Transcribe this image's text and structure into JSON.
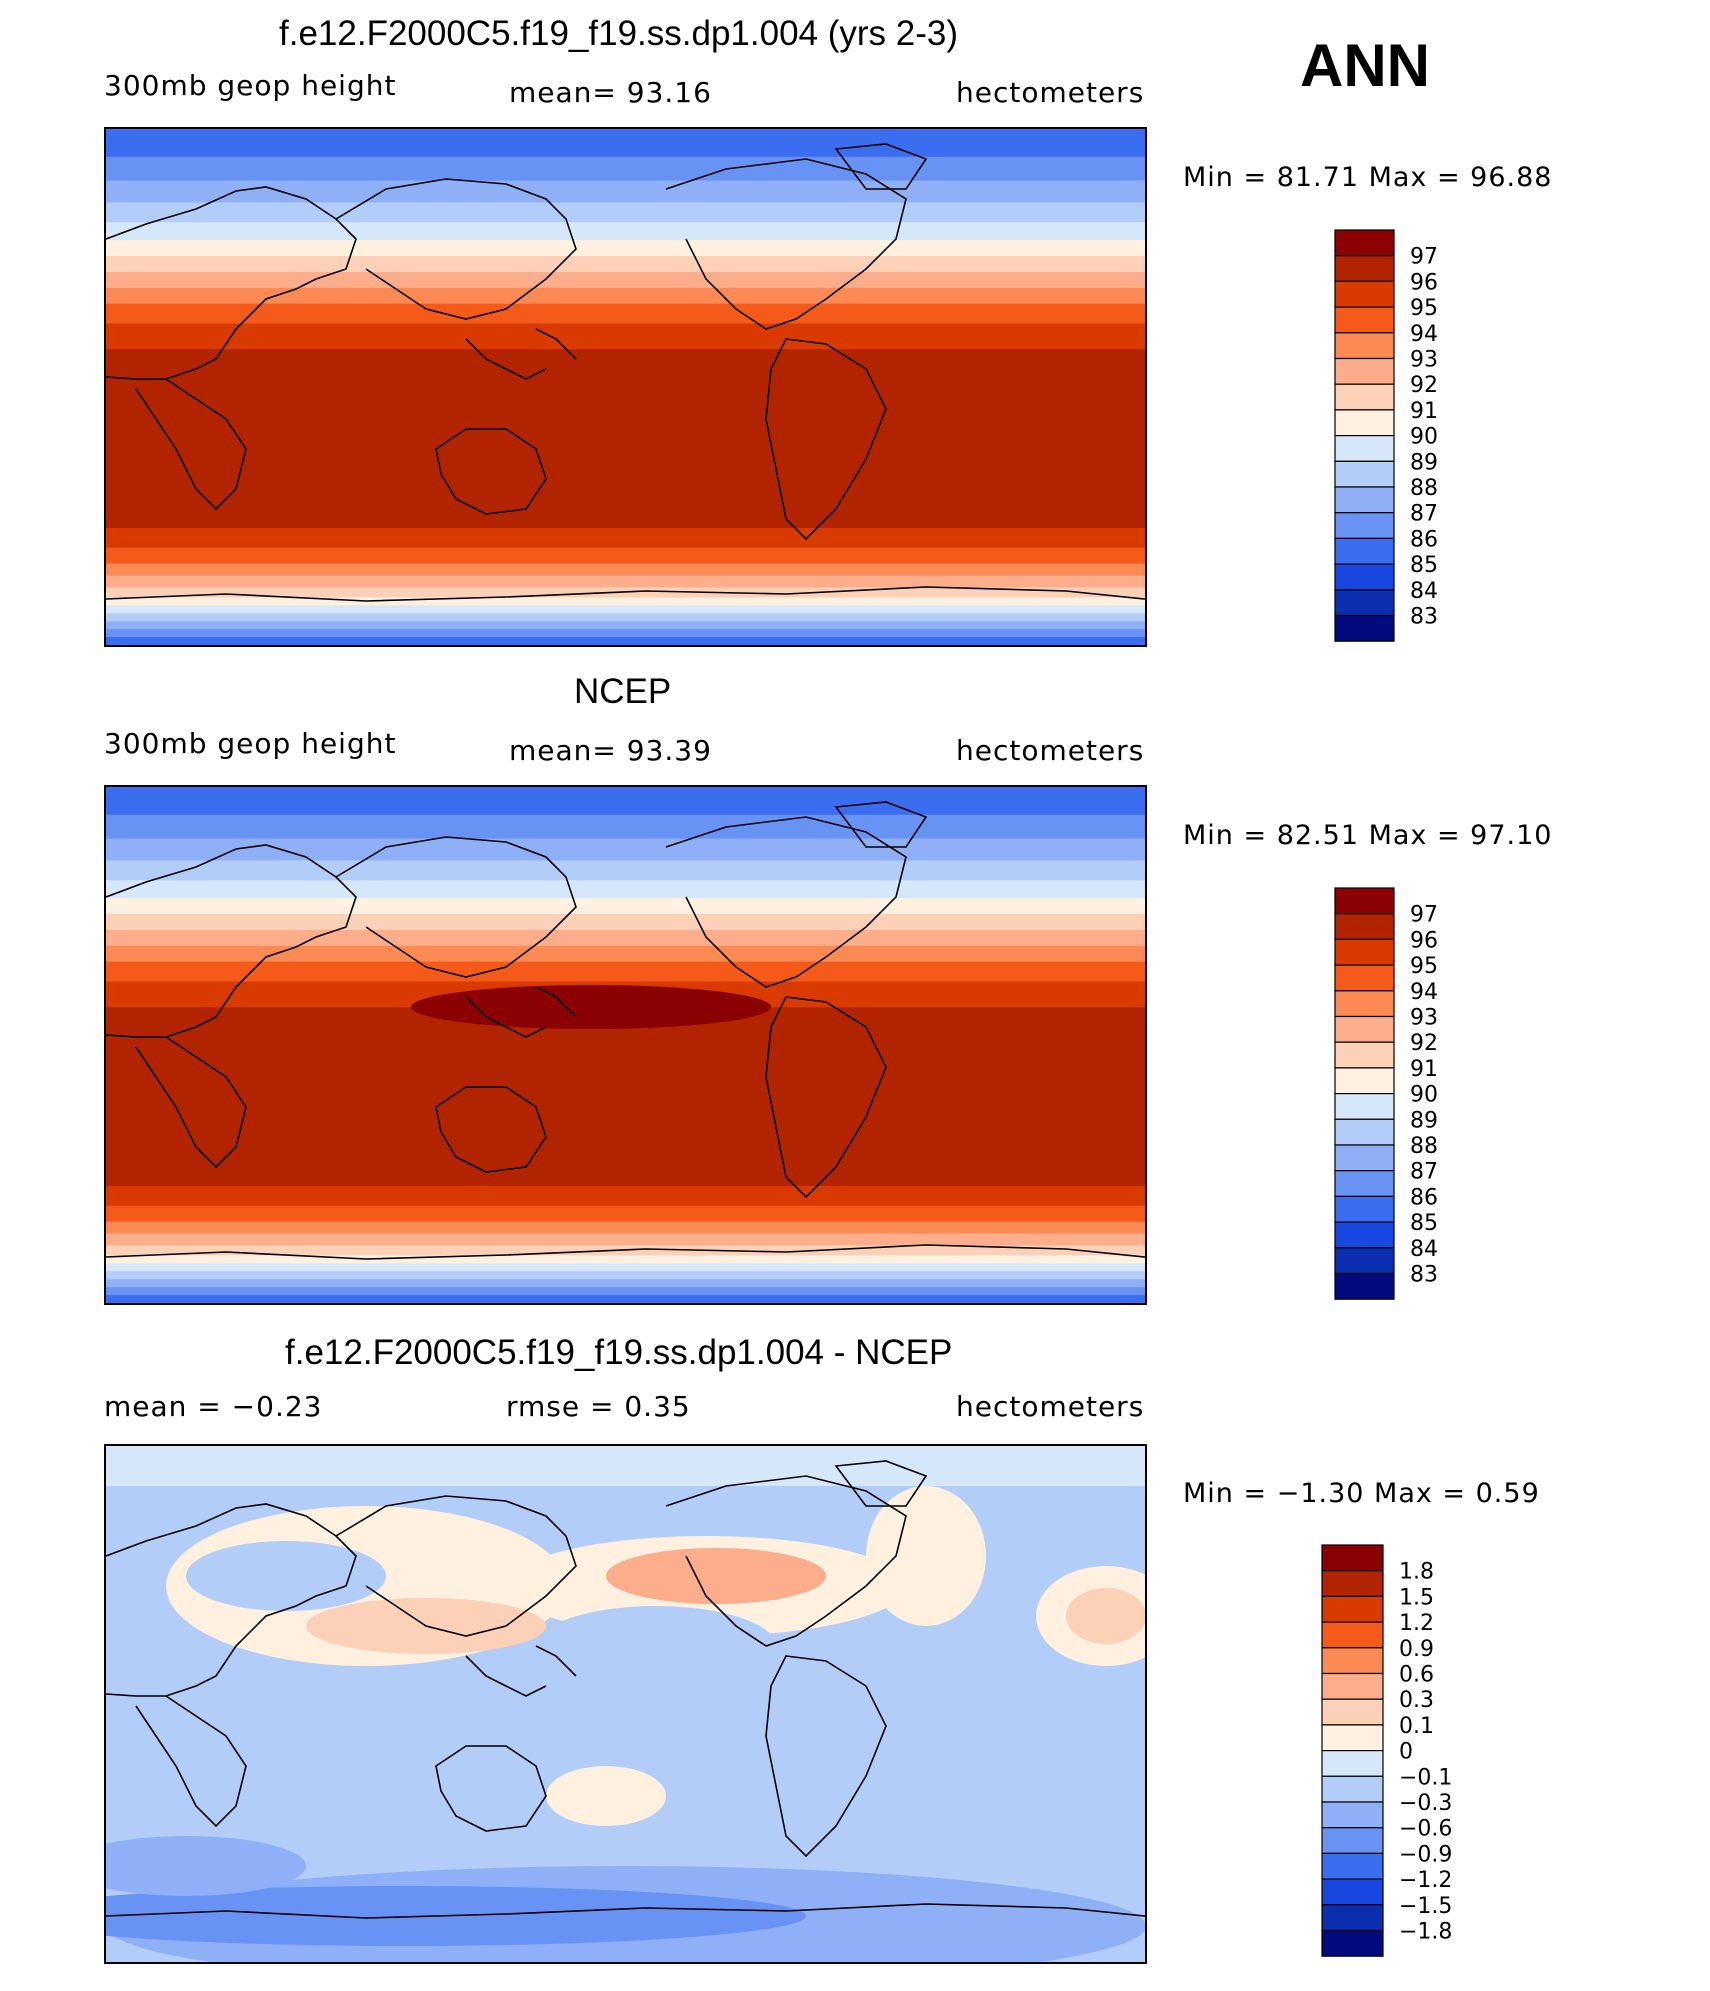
{
  "season": "ANN",
  "panels": [
    {
      "id": "model",
      "title": "f.e12.F2000C5.f19_f19.ss.dp1.004 (yrs 2-3)",
      "left_text": "300mb geop height",
      "center_text": "mean=   93.16",
      "right_text": "hectometers",
      "minmax": "Min =   81.71 Max =   96.88",
      "field_type": "absolute",
      "legend": {
        "labels": [
          "97",
          "96",
          "95",
          "94",
          "93",
          "92",
          "91",
          "90",
          "89",
          "88",
          "87",
          "86",
          "85",
          "84",
          "83"
        ],
        "colors": [
          "#8b0000",
          "#b22300",
          "#d83a00",
          "#f55a1b",
          "#fb8a55",
          "#fcae8c",
          "#fdd0b8",
          "#fff0e0",
          "#d6e7fa",
          "#b2cdf8",
          "#8fb0f7",
          "#6992f5",
          "#3a6df0",
          "#1846e0",
          "#0b2fb0",
          "#020a7e"
        ]
      }
    },
    {
      "id": "obs",
      "title": "NCEP",
      "left_text": "300mb geop height",
      "center_text": "mean=   93.39",
      "right_text": "hectometers",
      "minmax": "Min =   82.51 Max =   97.10",
      "field_type": "absolute",
      "legend": {
        "labels": [
          "97",
          "96",
          "95",
          "94",
          "93",
          "92",
          "91",
          "90",
          "89",
          "88",
          "87",
          "86",
          "85",
          "84",
          "83"
        ],
        "colors": [
          "#8b0000",
          "#b22300",
          "#d83a00",
          "#f55a1b",
          "#fb8a55",
          "#fcae8c",
          "#fdd0b8",
          "#fff0e0",
          "#d6e7fa",
          "#b2cdf8",
          "#8fb0f7",
          "#6992f5",
          "#3a6df0",
          "#1846e0",
          "#0b2fb0",
          "#020a7e"
        ]
      }
    },
    {
      "id": "diff",
      "title": "f.e12.F2000C5.f19_f19.ss.dp1.004 - NCEP",
      "left_text": "mean =   −0.23",
      "center_text": "rmse =    0.35",
      "right_text": "hectometers",
      "minmax": "Min =   −1.30 Max =    0.59",
      "field_type": "difference",
      "legend": {
        "labels": [
          "1.8",
          "1.5",
          "1.2",
          "0.9",
          "0.6",
          "0.3",
          "0.1",
          "0",
          "−0.1",
          "−0.3",
          "−0.6",
          "−0.9",
          "−1.2",
          "−1.5",
          "−1.8"
        ],
        "colors": [
          "#8b0000",
          "#b22300",
          "#d83a00",
          "#f55a1b",
          "#fb8a55",
          "#fcae8c",
          "#fdd0b8",
          "#fff0e0",
          "#d6e7fa",
          "#b2cdf8",
          "#8fb0f7",
          "#6992f5",
          "#3a6df0",
          "#1846e0",
          "#0b2fb0",
          "#020a7e"
        ]
      }
    }
  ]
}
